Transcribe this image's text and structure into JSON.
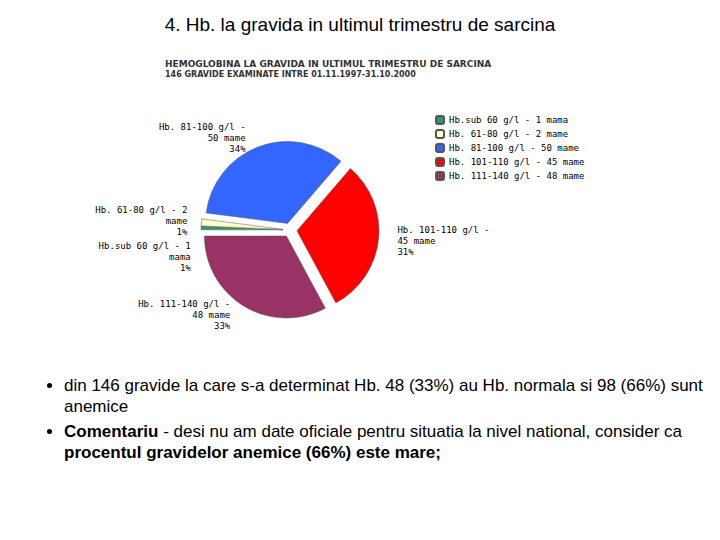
{
  "title": "4. Hb. la gravida in ultimul trimestru de sarcina",
  "chart_data": {
    "type": "pie",
    "title": "HEMOGLOBINA LA GRAVIDA IN ULTIMUL TRIMESTRU DE SARCINA",
    "subtitle": "146 GRAVIDE EXAMINATE INTRE 01.11.1997-31.10.2000",
    "categories": [
      "Hb.sub 60 g/l - 1 mama",
      "Hb. 61-80 g/l - 2 mame",
      "Hb. 81-100 g/l - 50 mame",
      "Hb. 101-110 g/l - 45 mame",
      "Hb. 111-140 g/l - 48 mame"
    ],
    "values": [
      1,
      2,
      50,
      45,
      48
    ],
    "value_labels": [
      "Hb.sub 60 g/l - 1\nmama\n1%",
      "Hb. 61-80 g/l - 2\nmame\n1%",
      "Hb. 81-100 g/l -\n50 mame\n34%",
      "Hb. 101-110 g/l -\n45 mame\n31%",
      "Hb. 111-140 g/l -\n48 mame\n33%"
    ],
    "colors": [
      "#339966",
      "#ffffcc",
      "#3366ff",
      "#ff0000",
      "#993366"
    ],
    "legend": "right",
    "data_labels": true
  },
  "bullets": [
    [
      {
        "text": "din 146 gravide la care s-a determinat Hb. 48 (33%) au Hb. normala si 98 (66%) sunt anemice",
        "bold": false
      }
    ],
    [
      {
        "text": "Comentariu",
        "bold": true
      },
      {
        "text": " - desi nu am date oficiale pentru situatia la nivel national, consider ca ",
        "bold": false
      },
      {
        "text": "procentul gravidelor anemice (66%) este mare;",
        "bold": true
      }
    ]
  ]
}
